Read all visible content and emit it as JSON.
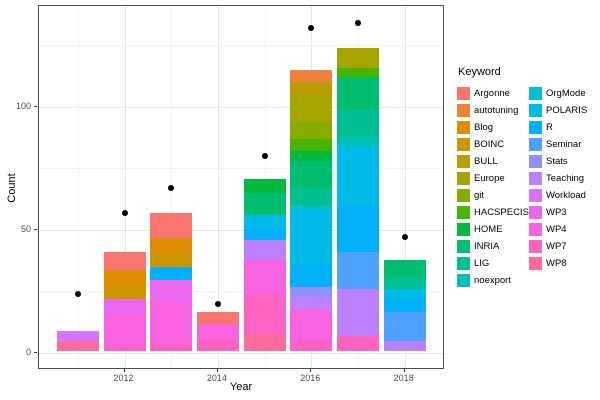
{
  "figure": {
    "background": "#ffffff",
    "panel_border_color": "#4d4d4d",
    "grid_major_color": "#e7e7e7",
    "grid_minor_color": "#f2f2f2",
    "point_color": "#000000"
  },
  "axes": {
    "x_label": "Year",
    "y_label": "Count",
    "x_ticks": [
      2012,
      2014,
      2016,
      2018
    ],
    "y_ticks": [
      0,
      50,
      100
    ],
    "y_minor_gridlines": [
      25,
      75,
      125
    ]
  },
  "legend": {
    "title": "Keyword",
    "column_split": 12
  },
  "chart_data": {
    "type": "bar",
    "stacked": true,
    "title": "",
    "xlabel": "Year",
    "ylabel": "Count",
    "x": [
      2011,
      2012,
      2013,
      2014,
      2015,
      2016,
      2017,
      2018
    ],
    "ylim": [
      0,
      140
    ],
    "grid": true,
    "legend_position": "right",
    "segment_order": "top-to-bottom in legend (alphabetical) order",
    "keywords": [
      {
        "name": "Argonne",
        "color": "#F8766D"
      },
      {
        "name": "autotuning",
        "color": "#EC823C"
      },
      {
        "name": "Blog",
        "color": "#DE8C00"
      },
      {
        "name": "BOINC",
        "color": "#CD9600"
      },
      {
        "name": "BULL",
        "color": "#BC9D00"
      },
      {
        "name": "Europe",
        "color": "#A5A500"
      },
      {
        "name": "git",
        "color": "#87AB01"
      },
      {
        "name": "HACSPECIS",
        "color": "#45B500"
      },
      {
        "name": "HOME",
        "color": "#00B93E"
      },
      {
        "name": "INRIA",
        "color": "#00BD6F"
      },
      {
        "name": "LIG",
        "color": "#00BF93"
      },
      {
        "name": "noexport",
        "color": "#00C0B4"
      },
      {
        "name": "OrgMode",
        "color": "#00BFD0"
      },
      {
        "name": "POLARIS",
        "color": "#00BAE8"
      },
      {
        "name": "R",
        "color": "#00B1F9"
      },
      {
        "name": "Seminar",
        "color": "#4FA2FF"
      },
      {
        "name": "Stats",
        "color": "#9091FF"
      },
      {
        "name": "Teaching",
        "color": "#BC81FF"
      },
      {
        "name": "Workload",
        "color": "#D873FB"
      },
      {
        "name": "WP3",
        "color": "#EA68EE"
      },
      {
        "name": "WP4",
        "color": "#F863DF"
      },
      {
        "name": "WP7",
        "color": "#FF62C0"
      },
      {
        "name": "WP8",
        "color": "#FF6B9C"
      }
    ],
    "bars": [
      {
        "year": 2011,
        "total": 8,
        "segments": [
          {
            "keyword": "Workload",
            "value": 4
          },
          {
            "keyword": "WP8",
            "value": 4
          }
        ]
      },
      {
        "year": 2012,
        "total": 40,
        "segments": [
          {
            "keyword": "Argonne",
            "value": 7
          },
          {
            "keyword": "Blog",
            "value": 7
          },
          {
            "keyword": "BOINC",
            "value": 5
          },
          {
            "keyword": "WP3",
            "value": 6
          },
          {
            "keyword": "WP4",
            "value": 13
          },
          {
            "keyword": "WP7",
            "value": 2
          }
        ]
      },
      {
        "year": 2013,
        "total": 56,
        "segments": [
          {
            "keyword": "Argonne",
            "value": 10
          },
          {
            "keyword": "Blog",
            "value": 6
          },
          {
            "keyword": "BOINC",
            "value": 6
          },
          {
            "keyword": "R",
            "value": 5
          },
          {
            "keyword": "WP3",
            "value": 9
          },
          {
            "keyword": "WP4",
            "value": 17
          },
          {
            "keyword": "WP7",
            "value": 3
          }
        ]
      },
      {
        "year": 2014,
        "total": 16,
        "segments": [
          {
            "keyword": "Argonne",
            "value": 5
          },
          {
            "keyword": "WP4",
            "value": 6
          },
          {
            "keyword": "WP7",
            "value": 5
          }
        ]
      },
      {
        "year": 2015,
        "total": 70,
        "segments": [
          {
            "keyword": "HOME",
            "value": 6
          },
          {
            "keyword": "INRIA",
            "value": 9
          },
          {
            "keyword": "POLARIS",
            "value": 5
          },
          {
            "keyword": "R",
            "value": 5
          },
          {
            "keyword": "Teaching",
            "value": 8
          },
          {
            "keyword": "WP4",
            "value": 14
          },
          {
            "keyword": "WP7",
            "value": 16
          },
          {
            "keyword": "WP8",
            "value": 7
          }
        ]
      },
      {
        "year": 2016,
        "total": 114,
        "segments": [
          {
            "keyword": "autotuning",
            "value": 5
          },
          {
            "keyword": "BULL",
            "value": 5
          },
          {
            "keyword": "Europe",
            "value": 11
          },
          {
            "keyword": "git",
            "value": 7
          },
          {
            "keyword": "HACSPECIS",
            "value": 5
          },
          {
            "keyword": "HOME",
            "value": 4
          },
          {
            "keyword": "INRIA",
            "value": 11
          },
          {
            "keyword": "LIG",
            "value": 7
          },
          {
            "keyword": "OrgMode",
            "value": 2
          },
          {
            "keyword": "POLARIS",
            "value": 22
          },
          {
            "keyword": "R",
            "value": 9
          },
          {
            "keyword": "Stats",
            "value": 4
          },
          {
            "keyword": "Teaching",
            "value": 5
          },
          {
            "keyword": "WP4",
            "value": 13
          },
          {
            "keyword": "WP7",
            "value": 4
          }
        ]
      },
      {
        "year": 2017,
        "total": 123,
        "segments": [
          {
            "keyword": "Europe",
            "value": 8
          },
          {
            "keyword": "HACSPECIS",
            "value": 4
          },
          {
            "keyword": "INRIA",
            "value": 13
          },
          {
            "keyword": "LIG",
            "value": 11
          },
          {
            "keyword": "noexport",
            "value": 4
          },
          {
            "keyword": "POLARIS",
            "value": 24
          },
          {
            "keyword": "R",
            "value": 19
          },
          {
            "keyword": "Seminar",
            "value": 15
          },
          {
            "keyword": "Teaching",
            "value": 19
          },
          {
            "keyword": "WP7",
            "value": 6
          }
        ]
      },
      {
        "year": 2018,
        "total": 37,
        "segments": [
          {
            "keyword": "INRIA",
            "value": 7
          },
          {
            "keyword": "LIG",
            "value": 5
          },
          {
            "keyword": "POLARIS",
            "value": 4
          },
          {
            "keyword": "R",
            "value": 5
          },
          {
            "keyword": "Seminar",
            "value": 12
          },
          {
            "keyword": "Teaching",
            "value": 4
          }
        ]
      }
    ],
    "points": [
      {
        "year": 2011,
        "value": 24
      },
      {
        "year": 2012,
        "value": 57
      },
      {
        "year": 2013,
        "value": 67
      },
      {
        "year": 2014,
        "value": 20
      },
      {
        "year": 2015,
        "value": 80
      },
      {
        "year": 2016,
        "value": 132
      },
      {
        "year": 2017,
        "value": 134
      },
      {
        "year": 2018,
        "value": 47
      }
    ]
  }
}
